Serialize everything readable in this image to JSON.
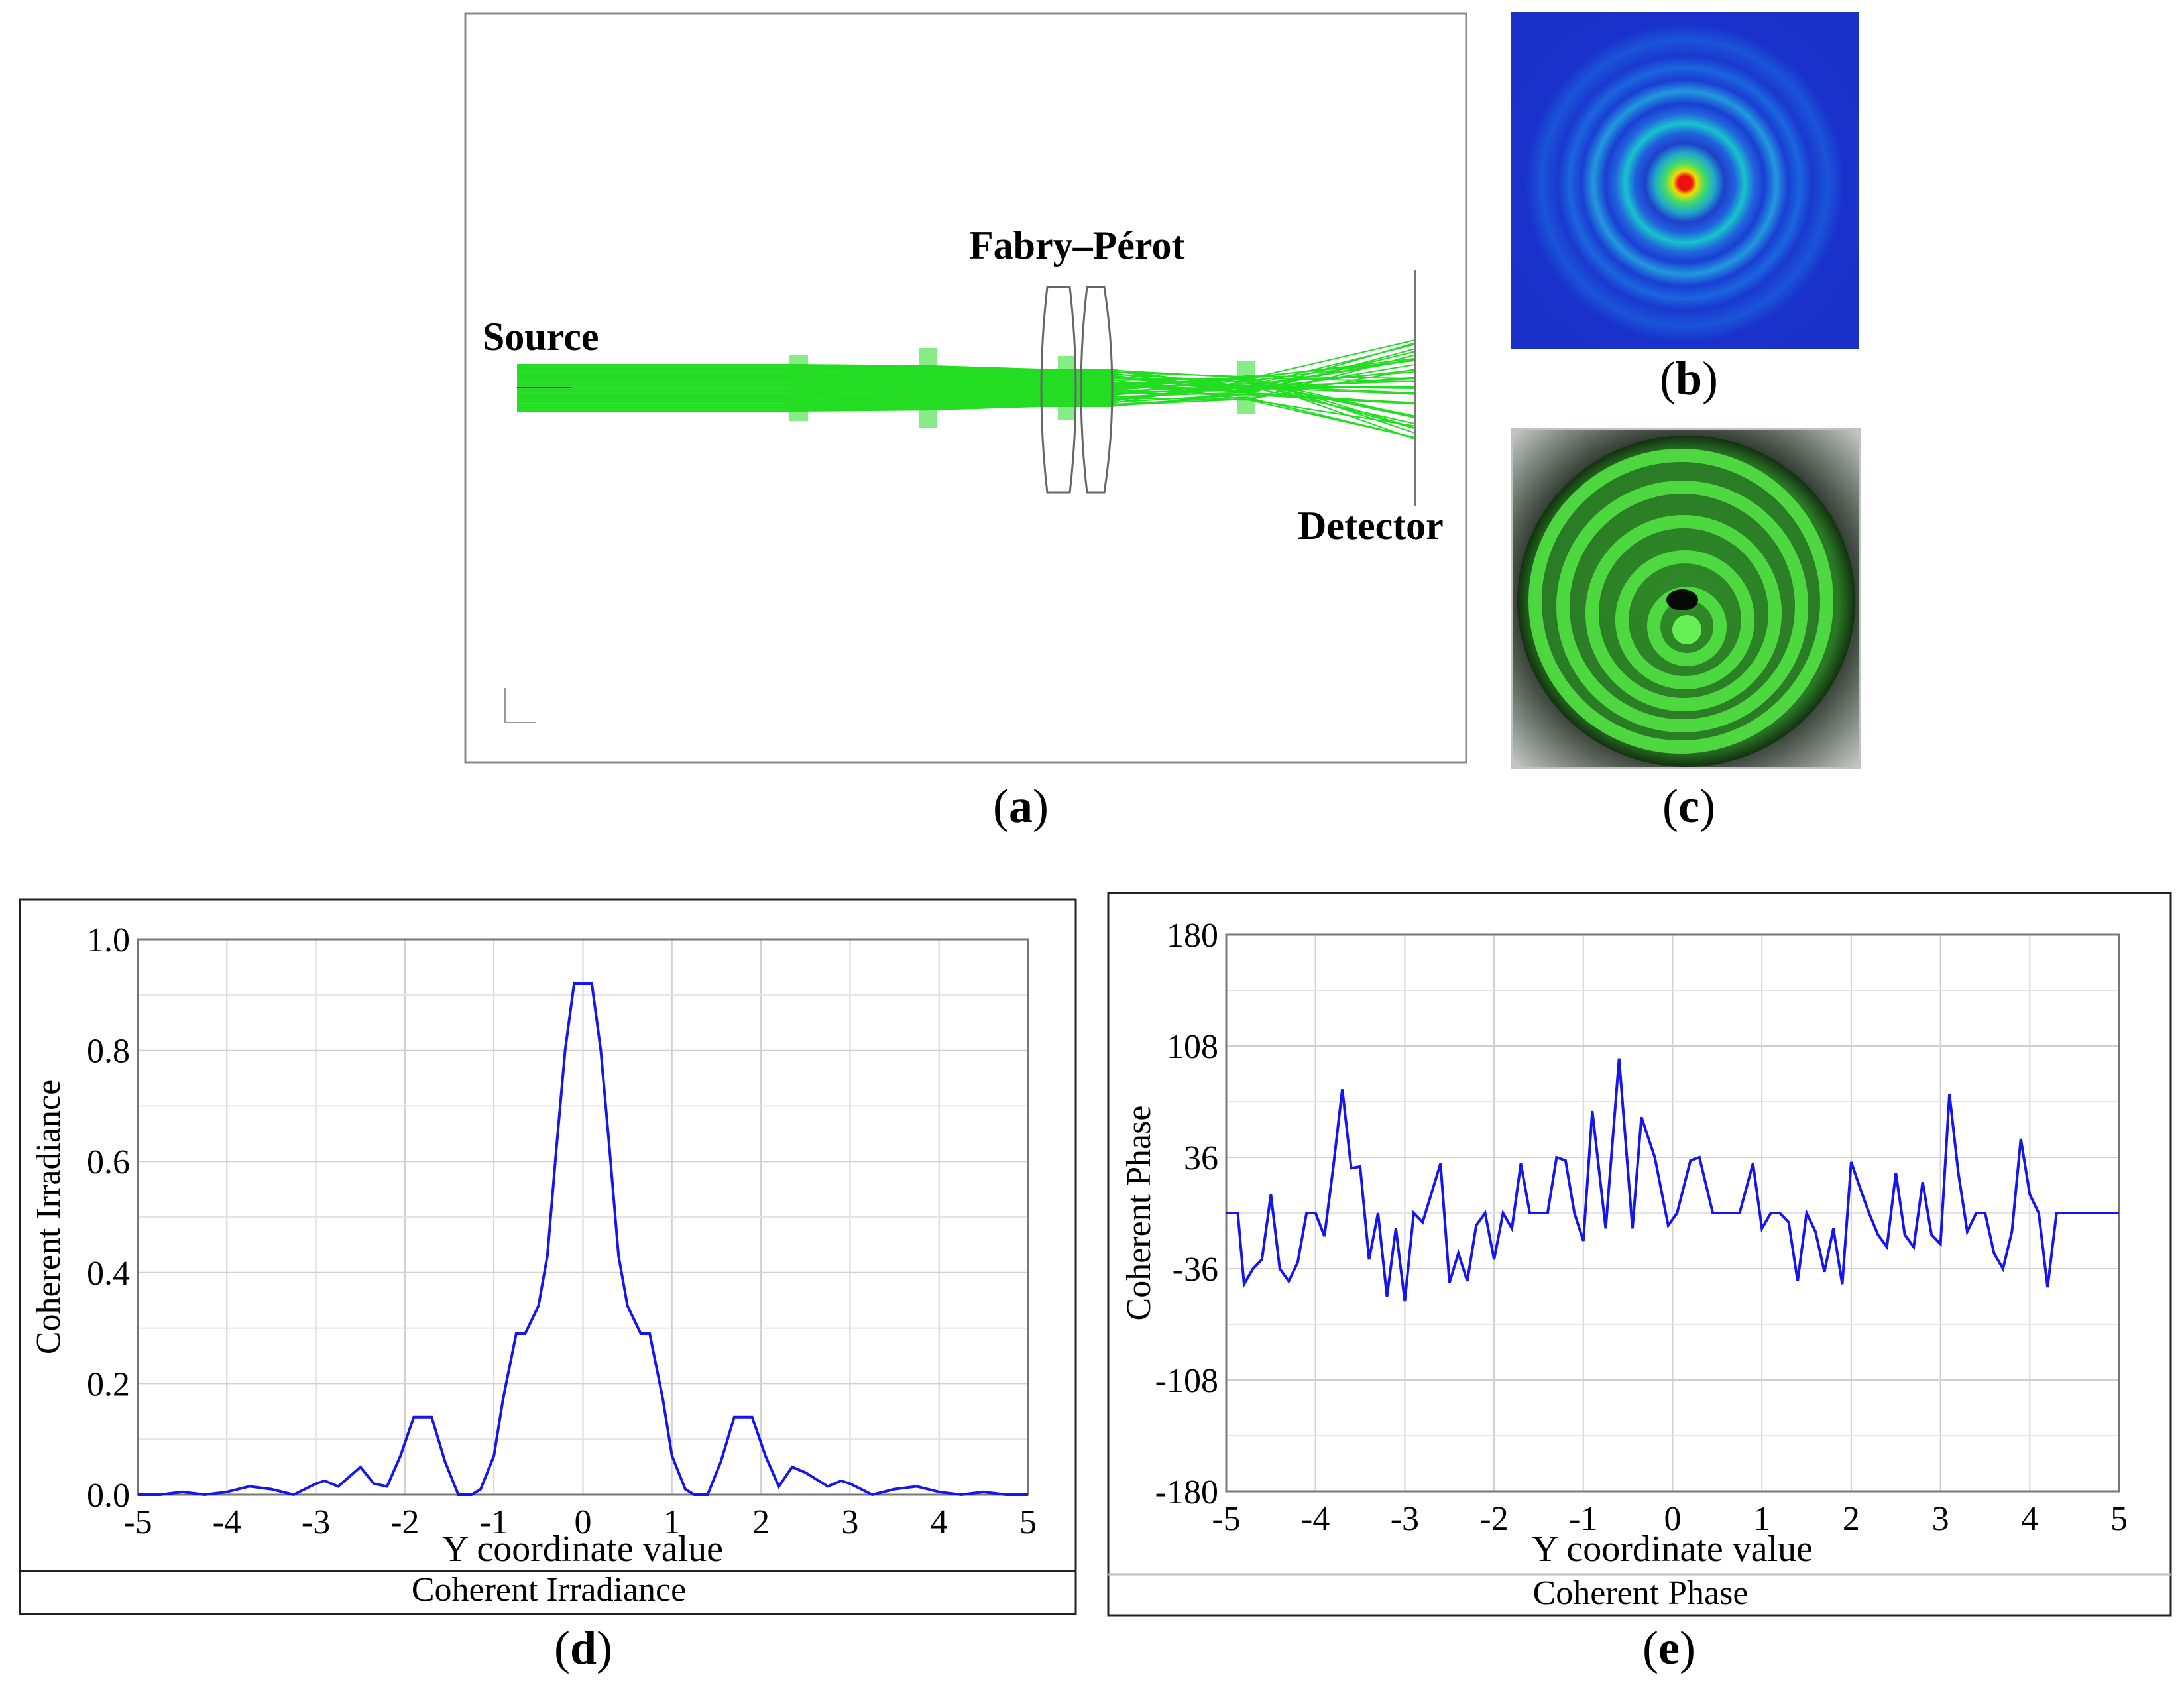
{
  "panels": {
    "a": {
      "label_letter": "a",
      "source_label": "Source",
      "fp_label": "Fabry–Pérot",
      "detector_label": "Detector"
    },
    "b": {
      "label_letter": "b"
    },
    "c": {
      "label_letter": "c"
    },
    "d": {
      "label_letter": "d"
    },
    "e": {
      "label_letter": "e"
    }
  },
  "colors": {
    "ray": "#22dd22",
    "plot_line": "#1515ee",
    "grid": "#d0d0d0",
    "frame": "#888888"
  },
  "chart_data": [
    {
      "id": "d",
      "type": "line",
      "title": "Coherent Irradiance",
      "xlabel": "Y coordinate value",
      "ylabel": "Coherent Irradiance",
      "xlim": [
        -5,
        5
      ],
      "ylim": [
        0,
        1.0
      ],
      "xticks": [
        -5,
        -4,
        -3,
        -2,
        -1,
        0,
        1,
        2,
        3,
        4,
        5
      ],
      "xtick_labels": [
        "-5",
        "-4",
        "-3",
        "-2",
        "-1",
        "0",
        "1",
        "2",
        "3",
        "4",
        "5"
      ],
      "yticks": [
        0,
        0.2,
        0.4,
        0.6,
        0.8,
        1.0
      ],
      "ytick_labels": [
        "0.0",
        "0.2",
        "0.4",
        "0.6",
        "0.8",
        "1.0"
      ],
      "x": [
        -5,
        -4.75,
        -4.5,
        -4.25,
        -4,
        -3.75,
        -3.5,
        -3.25,
        -3,
        -2.9,
        -2.75,
        -2.5,
        -2.35,
        -2.2,
        -2.05,
        -1.9,
        -1.7,
        -1.55,
        -1.4,
        -1.25,
        -1.15,
        -1.0,
        -0.9,
        -0.75,
        -0.65,
        -0.5,
        -0.4,
        -0.3,
        -0.2,
        -0.1,
        -0.05,
        0.05,
        0.1,
        0.2,
        0.3,
        0.4,
        0.5,
        0.65,
        0.75,
        0.9,
        1.0,
        1.15,
        1.25,
        1.4,
        1.55,
        1.7,
        1.9,
        2.05,
        2.2,
        2.35,
        2.5,
        2.75,
        2.9,
        3.0,
        3.25,
        3.5,
        3.75,
        4.0,
        4.25,
        4.5,
        4.75,
        5.0
      ],
      "y": [
        0.0,
        0.0,
        0.005,
        0.0,
        0.005,
        0.015,
        0.01,
        0.0,
        0.02,
        0.025,
        0.015,
        0.05,
        0.02,
        0.015,
        0.07,
        0.14,
        0.14,
        0.06,
        0.0,
        0.0,
        0.01,
        0.07,
        0.17,
        0.29,
        0.29,
        0.34,
        0.43,
        0.62,
        0.8,
        0.92,
        0.92,
        0.92,
        0.92,
        0.8,
        0.62,
        0.43,
        0.34,
        0.29,
        0.29,
        0.17,
        0.07,
        0.01,
        0.0,
        0.0,
        0.06,
        0.14,
        0.14,
        0.07,
        0.015,
        0.05,
        0.04,
        0.015,
        0.025,
        0.02,
        0.0,
        0.01,
        0.015,
        0.005,
        0.0,
        0.005,
        0.0,
        0.0
      ]
    },
    {
      "id": "e",
      "type": "line",
      "title": "Coherent Phase",
      "xlabel": "Y coordinate value",
      "ylabel": "Coherent Phase",
      "xlim": [
        -5,
        5
      ],
      "ylim": [
        -180,
        180
      ],
      "xticks": [
        -5,
        -4,
        -3,
        -2,
        -1,
        0,
        1,
        2,
        3,
        4,
        5
      ],
      "xtick_labels": [
        "-5",
        "-4",
        "-3",
        "-2",
        "-1",
        "0",
        "1",
        "2",
        "3",
        "4",
        "5"
      ],
      "yticks": [
        -180,
        -108,
        -36,
        36,
        108,
        180
      ],
      "ytick_labels": [
        "-180",
        "-108",
        "-36",
        "36",
        "108",
        "180"
      ],
      "x": [
        -5.0,
        -4.87,
        -4.8,
        -4.7,
        -4.6,
        -4.5,
        -4.4,
        -4.3,
        -4.2,
        -4.1,
        -4.0,
        -3.9,
        -3.8,
        -3.7,
        -3.6,
        -3.5,
        -3.4,
        -3.3,
        -3.2,
        -3.1,
        -3.0,
        -2.9,
        -2.8,
        -2.7,
        -2.6,
        -2.5,
        -2.4,
        -2.3,
        -2.2,
        -2.1,
        -2.0,
        -1.9,
        -1.8,
        -1.7,
        -1.6,
        -1.5,
        -1.4,
        -1.3,
        -1.2,
        -1.1,
        -1.0,
        -0.9,
        -0.75,
        -0.6,
        -0.45,
        -0.35,
        -0.2,
        -0.05,
        0.05,
        0.2,
        0.3,
        0.45,
        0.6,
        0.75,
        0.9,
        1.0,
        1.1,
        1.2,
        1.3,
        1.4,
        1.5,
        1.6,
        1.7,
        1.8,
        1.9,
        2.0,
        2.1,
        2.2,
        2.3,
        2.4,
        2.5,
        2.6,
        2.7,
        2.8,
        2.9,
        3.0,
        3.1,
        3.2,
        3.3,
        3.4,
        3.5,
        3.6,
        3.7,
        3.8,
        3.9,
        4.0,
        4.1,
        4.2,
        4.3,
        4.4,
        4.5,
        4.6,
        4.7,
        4.8,
        5.0
      ],
      "y": [
        0,
        0,
        -46,
        -36,
        -30,
        12,
        -36,
        -44,
        -32,
        0,
        0,
        -15,
        30,
        80,
        29,
        30,
        -30,
        0,
        -54,
        -10,
        -57,
        0,
        -6,
        13,
        32,
        -45,
        -26,
        -44,
        -8,
        0,
        -30,
        0,
        -10,
        32,
        0,
        0,
        0,
        36,
        34,
        0,
        -18,
        66,
        -10,
        100,
        -10,
        62,
        36,
        -8,
        0,
        34,
        36,
        0,
        0,
        0,
        32,
        -10,
        0,
        0,
        -6,
        -44,
        0,
        -12,
        -38,
        -10,
        -46,
        33,
        16,
        0,
        -14,
        -22,
        26,
        -14,
        -22,
        20,
        -14,
        -20,
        77,
        26,
        -12,
        0,
        0,
        -26,
        -36,
        -12,
        48,
        12,
        0,
        -48,
        0,
        0,
        0,
        0,
        0,
        0,
        0
      ]
    }
  ]
}
